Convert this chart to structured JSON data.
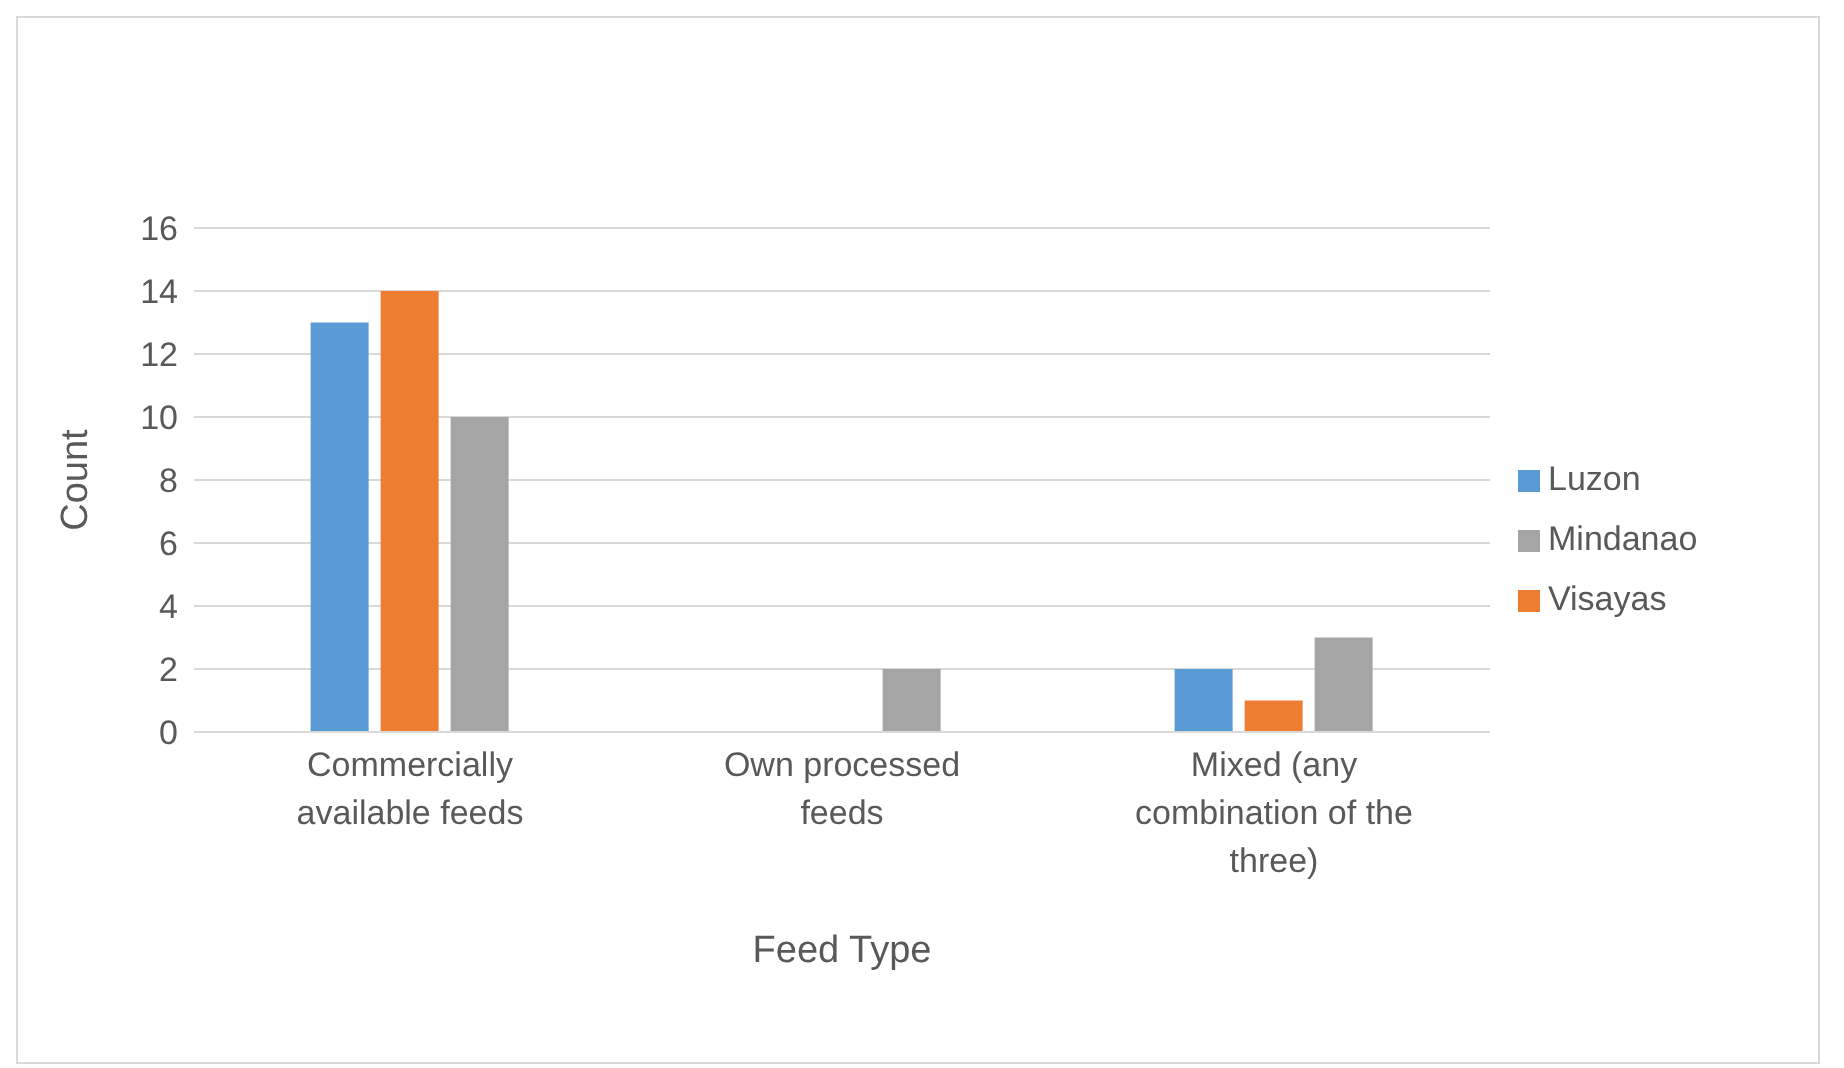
{
  "chart_data": {
    "type": "bar",
    "xlabel": "Feed Type",
    "ylabel": "Count",
    "categories": [
      "Commercially available feeds",
      "Own processed feeds",
      "Mixed (any combination of the three)"
    ],
    "series": [
      {
        "name": "Luzon",
        "color": "#5b9bd5",
        "values": [
          13,
          0,
          2
        ]
      },
      {
        "name": "Visayas",
        "color": "#ed7d31",
        "values": [
          14,
          0,
          1
        ]
      },
      {
        "name": "Mindanao",
        "color": "#a5a5a5",
        "values": [
          10,
          2,
          3
        ]
      }
    ],
    "ylim": [
      0,
      16
    ],
    "yticks": [
      0,
      2,
      4,
      6,
      8,
      10,
      12,
      14,
      16
    ],
    "grid": "y",
    "legend": "right"
  }
}
